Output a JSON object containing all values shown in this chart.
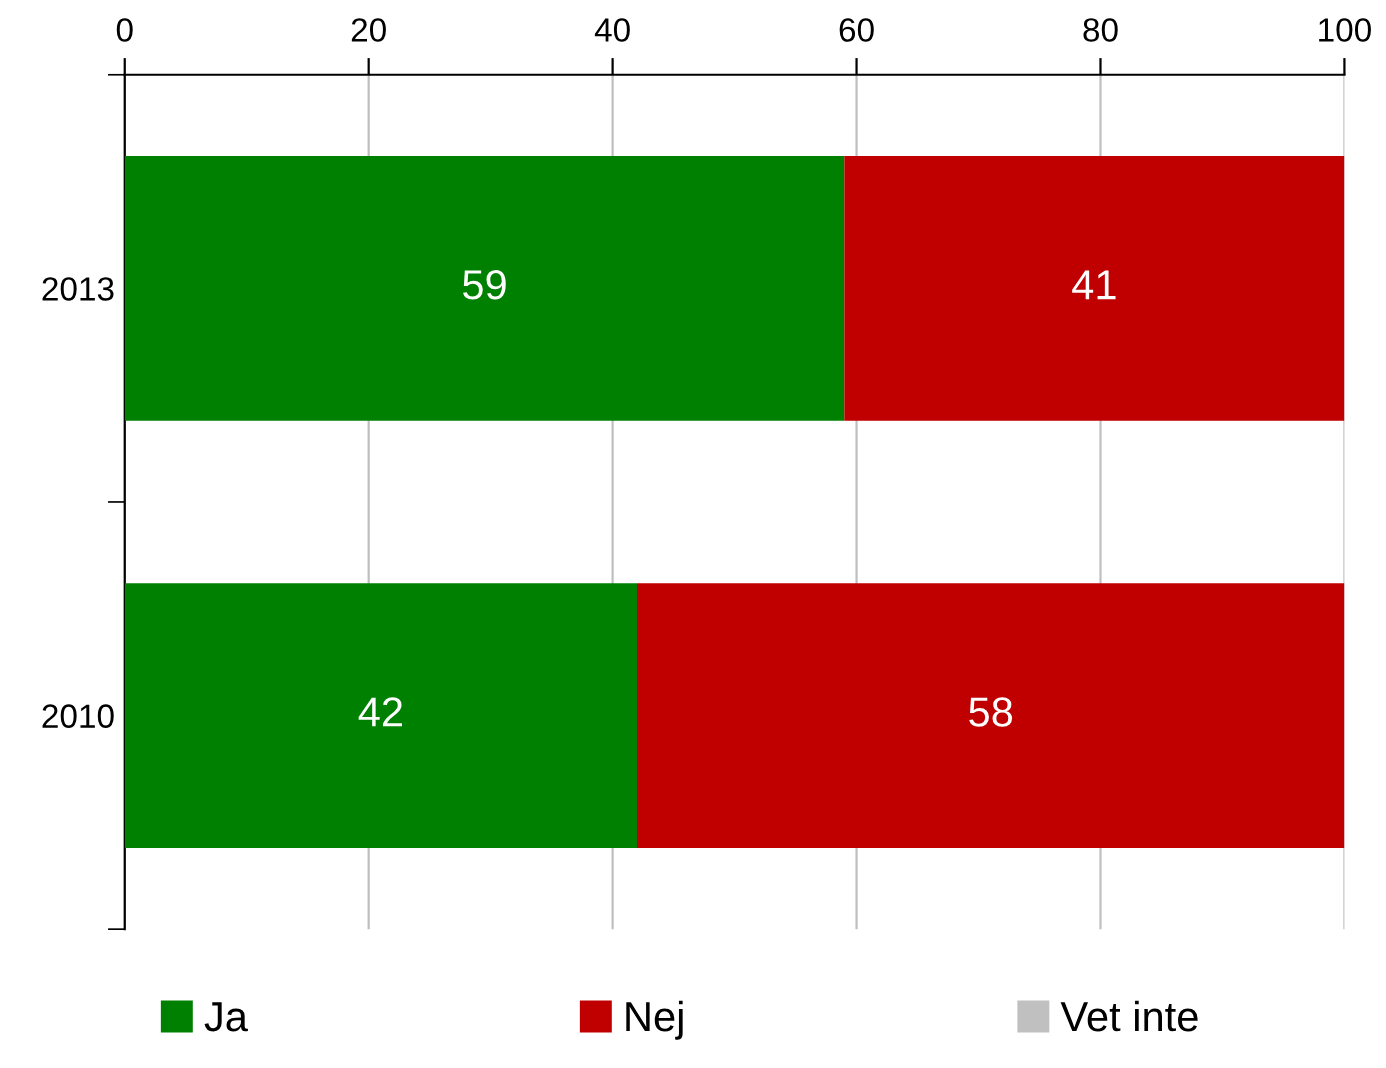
{
  "chart_data": {
    "type": "bar",
    "orientation": "horizontal",
    "stacked": true,
    "categories": [
      "2013",
      "2010"
    ],
    "series": [
      {
        "name": "Ja",
        "color": "#008000",
        "values": [
          59,
          42
        ],
        "value_labels": [
          "59",
          "42"
        ]
      },
      {
        "name": "Nej",
        "color": "#c00000",
        "values": [
          41,
          58
        ],
        "value_labels": [
          "41",
          "58"
        ]
      },
      {
        "name": "Vet inte",
        "color": "#c0c0c0",
        "values": [
          0,
          0
        ],
        "value_labels": [
          null,
          null
        ]
      }
    ],
    "xlim": [
      0,
      100
    ],
    "xticks": [
      0,
      20,
      40,
      60,
      80,
      100
    ],
    "grid": "x",
    "legend": "bottom"
  }
}
